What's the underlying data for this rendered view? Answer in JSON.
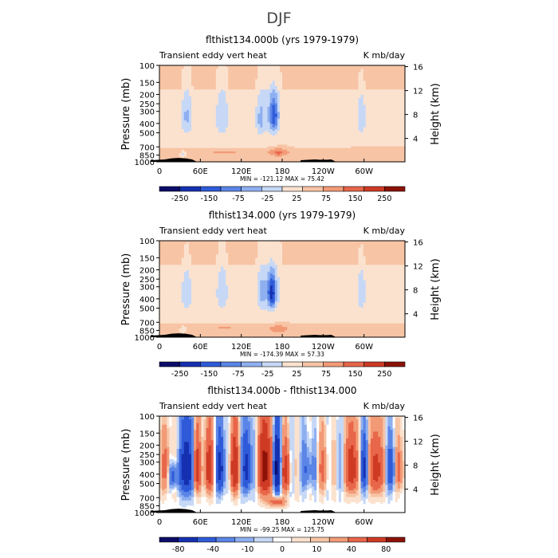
{
  "figure_title": "DJF",
  "chart_data": [
    {
      "type": "heatmap",
      "title": "flthist134.000b (yrs 1979-1979)",
      "left_string": "Transient eddy vert heat",
      "right_string": "K mb/day",
      "ylabel": "Pressure (mb)",
      "ylabel_right": "Height (km)",
      "pressure_ticks": [
        "100",
        "150",
        "200",
        "250",
        "300",
        "400",
        "500",
        "700",
        "850",
        "1000"
      ],
      "height_ticks": [
        "4",
        "8",
        "12",
        "16"
      ],
      "x_ticks": [
        "0",
        "60E",
        "120E",
        "180",
        "120W",
        "60W"
      ],
      "xlim": [
        0,
        360
      ],
      "ylim_mb": [
        1000,
        100
      ],
      "stats": "MIN = -121.12   MAX =  75.42",
      "colorbar_labels": [
        "-250",
        "-150",
        "-75",
        "-25",
        "25",
        "75",
        "150",
        "250"
      ],
      "scheme": "mean",
      "palette": [
        "#0c0c6a",
        "#1531b1",
        "#2f5bd9",
        "#5b85e6",
        "#8eaff0",
        "#c6d8f6",
        "#fbe2cf",
        "#f7c4a5",
        "#f29a76",
        "#e8664a",
        "#ce3a24",
        "#8c1208"
      ],
      "features": [
        {
          "lon": 40,
          "p": 330,
          "w": 8,
          "h": 180,
          "amp": -45
        },
        {
          "lon": 92,
          "p": 330,
          "w": 9,
          "h": 200,
          "amp": -40
        },
        {
          "lon": 148,
          "p": 360,
          "w": 6,
          "h": 160,
          "amp": -38
        },
        {
          "lon": 168,
          "p": 330,
          "w": 6,
          "h": 140,
          "amp": -90
        },
        {
          "lon": 162,
          "p": 300,
          "w": 16,
          "h": 220,
          "amp": -30
        },
        {
          "lon": 296,
          "p": 340,
          "w": 6,
          "h": 170,
          "amp": -40
        },
        {
          "lon": 175,
          "p": 800,
          "w": 14,
          "h": 70,
          "amp": 55
        },
        {
          "lon": 95,
          "p": 800,
          "w": 40,
          "h": 40,
          "amp": 22
        },
        {
          "lon": 320,
          "p": 780,
          "w": 40,
          "h": 50,
          "amp": 18
        },
        {
          "lon": 35,
          "p": 830,
          "w": 4,
          "h": 60,
          "amp": -35
        }
      ],
      "topo": [
        {
          "lon": 28,
          "w": 10,
          "p": 880
        },
        {
          "lon": 240,
          "w": 6,
          "p": 960
        }
      ]
    },
    {
      "type": "heatmap",
      "title": "flthist134.000 (yrs 1979-1979)",
      "left_string": "Transient eddy vert heat",
      "right_string": "K mb/day",
      "ylabel": "Pressure (mb)",
      "ylabel_right": "Height (km)",
      "pressure_ticks": [
        "100",
        "150",
        "200",
        "250",
        "300",
        "400",
        "500",
        "700",
        "850",
        "1000"
      ],
      "height_ticks": [
        "4",
        "8",
        "12",
        "16"
      ],
      "x_ticks": [
        "0",
        "60E",
        "120E",
        "180",
        "120W",
        "60W"
      ],
      "xlim": [
        0,
        360
      ],
      "ylim_mb": [
        1000,
        100
      ],
      "stats": "MIN = -174.39   MAX =  57.33",
      "colorbar_labels": [
        "-250",
        "-150",
        "-75",
        "-25",
        "25",
        "75",
        "150",
        "250"
      ],
      "scheme": "mean",
      "palette": [
        "#0c0c6a",
        "#1531b1",
        "#2f5bd9",
        "#5b85e6",
        "#8eaff0",
        "#c6d8f6",
        "#fbe2cf",
        "#f7c4a5",
        "#f29a76",
        "#e8664a",
        "#ce3a24",
        "#8c1208"
      ],
      "features": [
        {
          "lon": 40,
          "p": 340,
          "w": 7,
          "h": 170,
          "amp": -42
        },
        {
          "lon": 92,
          "p": 330,
          "w": 8,
          "h": 190,
          "amp": -38
        },
        {
          "lon": 150,
          "p": 350,
          "w": 6,
          "h": 150,
          "amp": -36
        },
        {
          "lon": 165,
          "p": 350,
          "w": 5,
          "h": 120,
          "amp": -140
        },
        {
          "lon": 162,
          "p": 300,
          "w": 16,
          "h": 230,
          "amp": -35
        },
        {
          "lon": 296,
          "p": 340,
          "w": 6,
          "h": 170,
          "amp": -40
        },
        {
          "lon": 175,
          "p": 820,
          "w": 14,
          "h": 70,
          "amp": 40
        },
        {
          "lon": 95,
          "p": 800,
          "w": 40,
          "h": 40,
          "amp": 20
        },
        {
          "lon": 35,
          "p": 830,
          "w": 4,
          "h": 60,
          "amp": -30
        }
      ],
      "topo": [
        {
          "lon": 28,
          "w": 10,
          "p": 880
        },
        {
          "lon": 240,
          "w": 6,
          "p": 960
        }
      ]
    },
    {
      "type": "heatmap",
      "title": "flthist134.000b - flthist134.000",
      "left_string": "Transient eddy vert heat",
      "right_string": "K mb/day",
      "ylabel": "Pressure (mb)",
      "ylabel_right": "Height (km)",
      "pressure_ticks": [
        "100",
        "150",
        "200",
        "250",
        "300",
        "400",
        "500",
        "700",
        "850",
        "1000"
      ],
      "height_ticks": [
        "4",
        "8",
        "12",
        "16"
      ],
      "x_ticks": [
        "0",
        "60E",
        "120E",
        "180",
        "120W",
        "60W"
      ],
      "xlim": [
        0,
        360
      ],
      "ylim_mb": [
        1000,
        100
      ],
      "stats": "MIN = -99.25   MAX = 125.75",
      "colorbar_labels": [
        "-80",
        "-40",
        "-10",
        "0",
        "10",
        "40",
        "80"
      ],
      "scheme": "diff",
      "palette": [
        "#0c0c6a",
        "#1531b1",
        "#2f5bd9",
        "#5b85e6",
        "#8eaff0",
        "#c6d8f6",
        "#ffffff",
        "#fbe2cf",
        "#f7c4a5",
        "#f29a76",
        "#e8664a",
        "#ce3a24",
        "#8c1208"
      ],
      "features": [
        {
          "lon": 40,
          "p": 350,
          "w": 8,
          "h": 260,
          "amp": -70
        },
        {
          "lon": 55,
          "p": 350,
          "w": 5,
          "h": 220,
          "amp": 55
        },
        {
          "lon": 72,
          "p": 350,
          "w": 6,
          "h": 230,
          "amp": 60
        },
        {
          "lon": 90,
          "p": 350,
          "w": 6,
          "h": 230,
          "amp": -50
        },
        {
          "lon": 110,
          "p": 350,
          "w": 6,
          "h": 230,
          "amp": 70
        },
        {
          "lon": 128,
          "p": 350,
          "w": 6,
          "h": 230,
          "amp": -55
        },
        {
          "lon": 155,
          "p": 350,
          "w": 8,
          "h": 250,
          "amp": 110
        },
        {
          "lon": 172,
          "p": 350,
          "w": 5,
          "h": 220,
          "amp": -90
        },
        {
          "lon": 185,
          "p": 380,
          "w": 6,
          "h": 200,
          "amp": 50
        },
        {
          "lon": 218,
          "p": 360,
          "w": 10,
          "h": 180,
          "amp": -20
        },
        {
          "lon": 282,
          "p": 350,
          "w": 7,
          "h": 230,
          "amp": 70
        },
        {
          "lon": 300,
          "p": 350,
          "w": 5,
          "h": 200,
          "amp": -40
        },
        {
          "lon": 318,
          "p": 360,
          "w": 8,
          "h": 230,
          "amp": 60
        },
        {
          "lon": 340,
          "p": 360,
          "w": 6,
          "h": 200,
          "amp": -30
        },
        {
          "lon": 352,
          "p": 360,
          "w": 5,
          "h": 200,
          "amp": 35
        },
        {
          "lon": 10,
          "p": 350,
          "w": 6,
          "h": 220,
          "amp": 30
        },
        {
          "lon": 20,
          "p": 420,
          "w": 8,
          "h": 120,
          "amp": -30
        },
        {
          "lon": 240,
          "p": 350,
          "w": 8,
          "h": 220,
          "amp": 20
        },
        {
          "lon": 172,
          "p": 780,
          "w": 12,
          "h": 80,
          "amp": 30
        }
      ],
      "topo": [
        {
          "lon": 28,
          "w": 10,
          "p": 880
        },
        {
          "lon": 240,
          "w": 6,
          "p": 960
        }
      ]
    }
  ]
}
